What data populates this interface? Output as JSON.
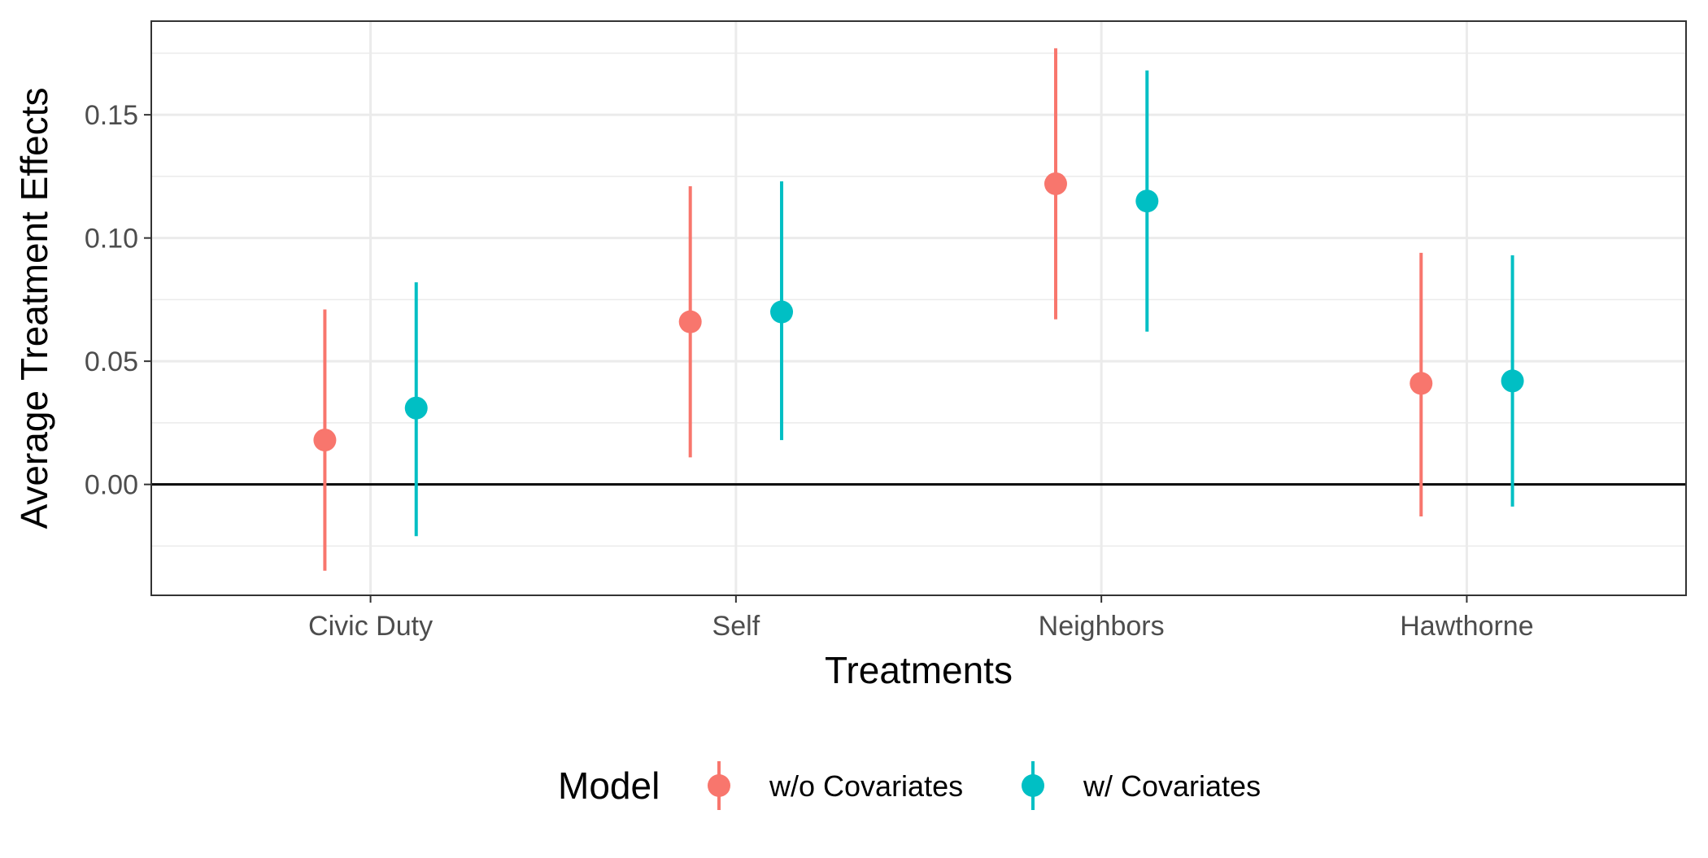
{
  "chart_data": {
    "type": "scatter",
    "xlabel": "Treatments",
    "ylabel": "Average Treatment Effects",
    "categories": [
      "Civic Duty",
      "Self",
      "Neighbors",
      "Hawthorne"
    ],
    "ylim": [
      -0.045,
      0.188
    ],
    "yticks": [
      0.0,
      0.05,
      0.1,
      0.15
    ],
    "ytick_labels": [
      "0.00",
      "0.05",
      "0.10",
      "0.15"
    ],
    "reference_line": 0,
    "grid": true,
    "legend": {
      "title": "Model",
      "position": "bottom",
      "items": [
        {
          "label": "w/o Covariates",
          "color": "#F8766D"
        },
        {
          "label": "w/ Covariates",
          "color": "#00BFC4"
        }
      ]
    },
    "series": [
      {
        "name": "w/o Covariates",
        "color": "#F8766D",
        "estimates": [
          0.018,
          0.066,
          0.122,
          0.041
        ],
        "lower": [
          -0.035,
          0.011,
          0.067,
          -0.013
        ],
        "upper": [
          0.071,
          0.121,
          0.177,
          0.094
        ]
      },
      {
        "name": "w/ Covariates",
        "color": "#00BFC4",
        "estimates": [
          0.031,
          0.07,
          0.115,
          0.042
        ],
        "lower": [
          -0.021,
          0.018,
          0.062,
          -0.009
        ],
        "upper": [
          0.082,
          0.123,
          0.168,
          0.093
        ]
      }
    ]
  }
}
